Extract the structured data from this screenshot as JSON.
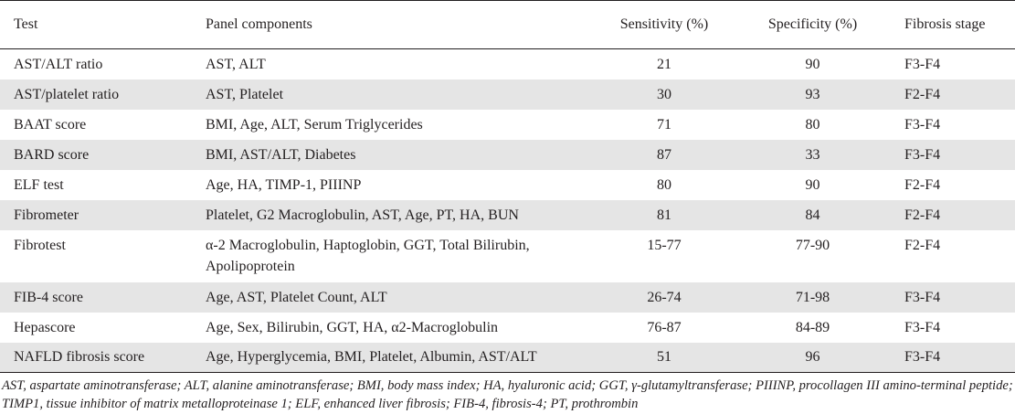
{
  "headers": [
    "Test",
    "Panel components",
    "Sensitivity (%)",
    "Specificity (%)",
    "Fibrosis stage"
  ],
  "rows": [
    {
      "test": "AST/ALT ratio",
      "panel": "AST, ALT",
      "sens": "21",
      "spec": "90",
      "stage": "F3-F4"
    },
    {
      "test": "AST/platelet ratio",
      "panel": "AST, Platelet",
      "sens": "30",
      "spec": "93",
      "stage": "F2-F4"
    },
    {
      "test": "BAAT score",
      "panel": "BMI, Age, ALT, Serum Triglycerides",
      "sens": "71",
      "spec": "80",
      "stage": "F3-F4"
    },
    {
      "test": "BARD score",
      "panel": "BMI, AST/ALT, Diabetes",
      "sens": "87",
      "spec": "33",
      "stage": "F3-F4"
    },
    {
      "test": "ELF test",
      "panel": "Age, HA, TIMP-1, PIIINP",
      "sens": "80",
      "spec": "90",
      "stage": "F2-F4"
    },
    {
      "test": "Fibrometer",
      "panel": "Platelet, G2 Macroglobulin, AST, Age, PT, HA, BUN",
      "sens": "81",
      "spec": "84",
      "stage": "F2-F4"
    },
    {
      "test": "Fibrotest",
      "panel": "α-2 Macroglobulin, Haptoglobin, GGT, Total Bilirubin, Apolipoprotein",
      "sens": "15-77",
      "spec": "77-90",
      "stage": "F2-F4"
    },
    {
      "test": "FIB-4 score",
      "panel": "Age, AST, Platelet Count, ALT",
      "sens": "26-74",
      "spec": "71-98",
      "stage": "F3-F4"
    },
    {
      "test": "Hepascore",
      "panel": "Age, Sex, Bilirubin, GGT, HA, α2-Macroglobulin",
      "sens": "76-87",
      "spec": "84-89",
      "stage": "F3-F4"
    },
    {
      "test": "NAFLD fibrosis score",
      "panel": "Age, Hyperglycemia, BMI, Platelet, Albumin, AST/ALT",
      "sens": "51",
      "spec": "96",
      "stage": "F3-F4"
    }
  ],
  "footnote": "AST, aspartate aminotransferase; ALT, alanine aminotransferase; BMI, body mass index; HA, hyaluronic acid; GGT, γ-glutamyltransferase; PIIINP, procollagen III amino-terminal peptide; TIMP1, tissue inhibitor of matrix metalloproteinase 1; ELF, enhanced liver fibrosis; FIB-4, fibrosis-4; PT, prothrombin",
  "colors": {
    "shade": "#e5e5e5",
    "text": "#231f20",
    "rule": "#231f20"
  }
}
